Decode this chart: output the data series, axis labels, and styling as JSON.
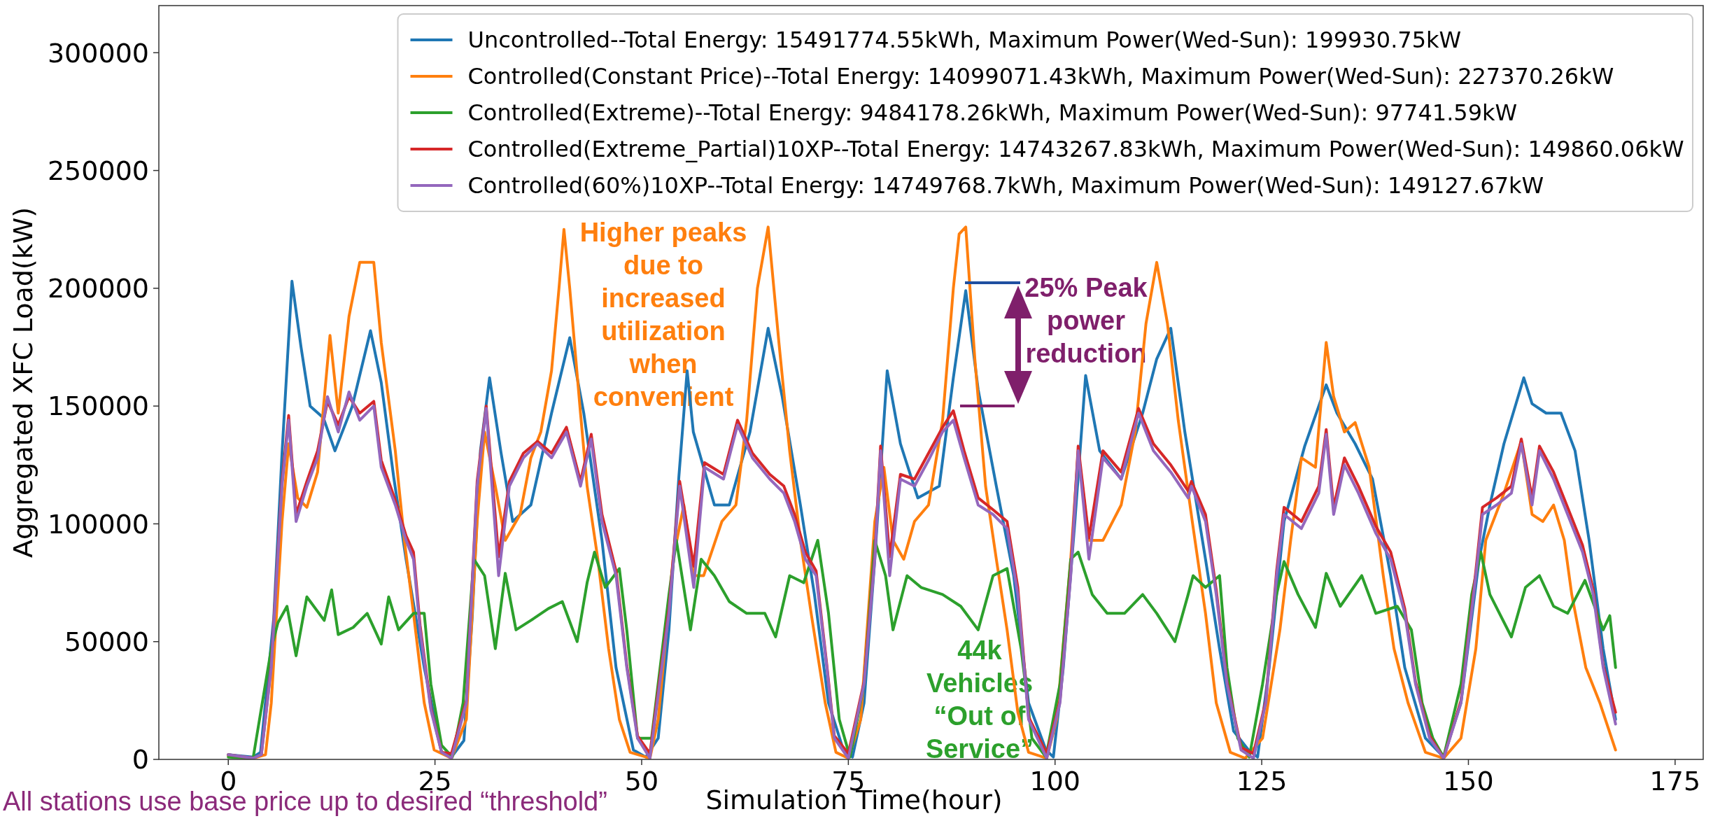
{
  "chart_data": {
    "type": "line",
    "xlabel": "Simulation Time(hour)",
    "ylabel": "Aggregated XFC Load(kW)",
    "xlim": [
      -8.4,
      178.4
    ],
    "ylim": [
      0,
      320000
    ],
    "xticks": [
      0,
      25,
      50,
      75,
      100,
      125,
      150,
      175
    ],
    "yticks": [
      0,
      50000,
      100000,
      150000,
      200000,
      250000,
      300000
    ],
    "grid": false,
    "legend": "top right",
    "line_style": "solid",
    "marker": "none",
    "annotations": [
      "Higher peaks due to increased utilization when convenient",
      "25% Peak power reduction",
      "44k Vehicles “Out of Service”",
      "All stations use base price up to desired “threshold”"
    ],
    "series": [
      {
        "name": "Uncontrolled--Total Energy: 15491774.55kWh, Maximum Power(Wed-Sun): 199930.75kW",
        "color": "#1f77b4",
        "x": [
          0,
          3,
          3.9,
          5.5,
          6.5,
          7.7,
          8.8,
          9.9,
          11.5,
          12.9,
          15,
          17.2,
          18.5,
          20,
          21.5,
          23.7,
          25.8,
          27,
          28.5,
          29.5,
          30.5,
          31.6,
          33,
          34.4,
          36.6,
          39.1,
          41.3,
          43,
          45.2,
          46.9,
          49,
          50.5,
          52,
          53.3,
          54.5,
          55.5,
          56.25,
          58.8,
          60.6,
          63.1,
          65.3,
          67,
          69.2,
          70.9,
          72.6,
          74.4,
          75.5,
          76.9,
          78.2,
          79.7,
          81.3,
          83.4,
          86,
          87.7,
          89.2,
          90.7,
          92.9,
          95,
          96.8,
          98.9,
          99.8,
          101,
          102.4,
          103.7,
          105.4,
          108,
          110.6,
          112.3,
          114,
          115.7,
          118.2,
          119.9,
          121.6,
          123.4,
          124.5,
          125.9,
          127.7,
          130.2,
          132.8,
          134.1,
          136.3,
          138.4,
          140.6,
          142.3,
          144.8,
          147,
          149.1,
          151.3,
          152.6,
          154.3,
          156.7,
          157.7,
          159.4,
          161.2,
          162.9,
          164.6,
          166.3,
          167.8
        ],
        "values": [
          2000,
          1000,
          3000,
          60000,
          130000,
          203000,
          175000,
          150000,
          145000,
          131000,
          150000,
          182000,
          160000,
          120000,
          85000,
          39000,
          3000,
          1000,
          8000,
          60000,
          131000,
          162000,
          130000,
          101000,
          108000,
          147000,
          179000,
          147000,
          93000,
          39000,
          4000,
          1000,
          9000,
          55000,
          120000,
          165000,
          139000,
          108000,
          108000,
          139000,
          183000,
          154000,
          108000,
          70000,
          24000,
          4000,
          1000,
          24000,
          85000,
          165000,
          134000,
          111000,
          116000,
          162000,
          199000,
          157000,
          116000,
          78000,
          24000,
          4000,
          1000,
          39000,
          101000,
          163000,
          131000,
          119000,
          147000,
          170000,
          183000,
          139000,
          85000,
          47000,
          12000,
          4000,
          1000,
          39000,
          101000,
          133000,
          159000,
          147000,
          134000,
          119000,
          78000,
          39000,
          9000,
          1000,
          24000,
          85000,
          108000,
          134000,
          162000,
          151000,
          147000,
          147000,
          131000,
          93000,
          47000,
          17000
        ]
      },
      {
        "name": "Controlled(Constant Price)--Total Energy: 14099071.43kWh, Maximum Power(Wed-Sun): 227370.26kW",
        "color": "#ff7f0e",
        "x": [
          0,
          3,
          4.5,
          5.2,
          6.5,
          7.3,
          8.4,
          9.5,
          10.8,
          12.3,
          13.3,
          14.6,
          15.9,
          17.6,
          18.5,
          20.2,
          21.3,
          22.4,
          23.7,
          24.9,
          27,
          28.8,
          30.1,
          31,
          32.3,
          33.5,
          35.3,
          36.6,
          37.8,
          39.1,
          40,
          40.6,
          41.3,
          42.6,
          43.4,
          44.7,
          46,
          47.3,
          48.6,
          51,
          52,
          53.8,
          55.1,
          56.3,
          57.5,
          59.7,
          61.4,
          62.7,
          64,
          65.3,
          66.6,
          67.9,
          69.2,
          70.5,
          72.2,
          73.5,
          75,
          76.5,
          78.2,
          79.3,
          80.4,
          81.7,
          83,
          84.7,
          86.4,
          87.7,
          88.4,
          89.2,
          90.3,
          91.6,
          92.9,
          94.2,
          95.5,
          96.8,
          99,
          100.2,
          101.9,
          102.8,
          104.1,
          105.8,
          108,
          109.7,
          111,
          112.3,
          113.6,
          114.9,
          116.6,
          118.2,
          119.5,
          121.2,
          123,
          125.1,
          127.2,
          128.5,
          129.8,
          131.5,
          132.8,
          133.7,
          135,
          136.3,
          138,
          139.7,
          141,
          142.7,
          144.8,
          147,
          149.1,
          150.9,
          152.1,
          154.3,
          156.4,
          157.7,
          159,
          160.3,
          161.6,
          162.5,
          164.2,
          165.9,
          167.8
        ],
        "values": [
          1500,
          500,
          2000,
          24000,
          101000,
          134000,
          111000,
          107000,
          122000,
          180000,
          147000,
          188000,
          211000,
          211000,
          177000,
          131000,
          93000,
          62000,
          24000,
          4000,
          500,
          17000,
          101000,
          139000,
          116000,
          93000,
          104000,
          128000,
          139000,
          165000,
          200000,
          225000,
          200000,
          147000,
          116000,
          85000,
          47000,
          17000,
          3000,
          500,
          17000,
          85000,
          108000,
          78000,
          78000,
          101000,
          108000,
          144000,
          200000,
          226000,
          177000,
          131000,
          93000,
          62000,
          24000,
          3000,
          500,
          17000,
          101000,
          124000,
          93000,
          85000,
          101000,
          108000,
          144000,
          200000,
          223000,
          226000,
          170000,
          116000,
          85000,
          55000,
          20000,
          3000,
          500,
          17000,
          85000,
          131000,
          93000,
          93000,
          108000,
          139000,
          185000,
          211000,
          185000,
          144000,
          101000,
          62000,
          24000,
          3000,
          500,
          9000,
          55000,
          93000,
          128000,
          124000,
          177000,
          154000,
          139000,
          143000,
          124000,
          78000,
          47000,
          24000,
          3000,
          500,
          9000,
          47000,
          93000,
          113000,
          135000,
          104000,
          101000,
          108000,
          93000,
          70000,
          39000,
          24000,
          4000
        ]
      },
      {
        "name": "Controlled(Extreme)--Total Energy: 9484178.26kWh, Maximum Power(Wed-Sun): 97741.59kW",
        "color": "#2ca02c",
        "x": [
          0,
          3,
          3.4,
          5.2,
          6,
          7.1,
          8.2,
          9.5,
          11.6,
          12.5,
          13.3,
          15.1,
          16.8,
          18.5,
          19.4,
          20.6,
          22.4,
          23.7,
          24.5,
          25.8,
          27.1,
          28.4,
          29.7,
          31,
          32.3,
          33.5,
          34.8,
          36.6,
          38.7,
          40.4,
          42.2,
          43.4,
          44.3,
          45.6,
          47.3,
          48.2,
          49.5,
          51.2,
          53.3,
          54.2,
          55.9,
          57.2,
          58.8,
          60.6,
          62.7,
          64.9,
          66.2,
          67.9,
          69.6,
          71.3,
          72.6,
          73.9,
          75.2,
          76.9,
          78.2,
          79.5,
          80.4,
          82.1,
          83.8,
          86.4,
          88.6,
          90.7,
          92.5,
          94.2,
          95.9,
          97.2,
          98.9,
          100.6,
          101.9,
          102.8,
          104.5,
          106.3,
          108.4,
          110.6,
          112.3,
          114.5,
          116.1,
          116.7,
          118.2,
          119.9,
          120.8,
          122.1,
          123.5,
          125.1,
          126.8,
          127.7,
          129.4,
          131.5,
          132.8,
          134.5,
          137.1,
          138.8,
          141.4,
          143.1,
          144.4,
          145.7,
          147,
          149.1,
          150.4,
          151.5,
          152.6,
          155.2,
          156.9,
          158.6,
          160.3,
          162,
          164.1,
          166.3,
          167.1,
          167.8
        ],
        "values": [
          1000,
          500,
          9000,
          47000,
          58000,
          65000,
          44000,
          69000,
          59000,
          72000,
          53000,
          56000,
          62000,
          49000,
          69000,
          55000,
          62000,
          62000,
          32000,
          6000,
          1000,
          24000,
          85000,
          78000,
          47000,
          79000,
          55000,
          59000,
          64000,
          67000,
          50000,
          75000,
          88000,
          73000,
          81000,
          55000,
          9000,
          9000,
          70000,
          93000,
          55000,
          85000,
          78000,
          67000,
          62000,
          62000,
          52000,
          78000,
          75000,
          93000,
          62000,
          17000,
          1000,
          32000,
          93000,
          78000,
          55000,
          78000,
          73000,
          70000,
          65000,
          55000,
          78000,
          81000,
          47000,
          9000,
          1000,
          32000,
          85000,
          88000,
          70000,
          62000,
          62000,
          70000,
          62000,
          50000,
          70000,
          78000,
          73000,
          78000,
          39000,
          9000,
          1000,
          32000,
          70000,
          84000,
          70000,
          56000,
          79000,
          65000,
          78000,
          62000,
          65000,
          55000,
          24000,
          9000,
          1000,
          32000,
          70000,
          88000,
          70000,
          52000,
          73000,
          78000,
          65000,
          62000,
          76000,
          55000,
          61000,
          39000
        ]
      },
      {
        "name": "Controlled(Extreme_Partial)10XP--Total Energy: 14743267.83kWh, Maximum Power(Wed-Sun): 149860.06kW",
        "color": "#d62728",
        "x": [
          0,
          3,
          4,
          5.2,
          6.5,
          7.3,
          8.2,
          9.5,
          10.8,
          12,
          13.3,
          14.6,
          15.9,
          17.6,
          18.5,
          20.2,
          21.5,
          22.4,
          23.2,
          24.5,
          25.8,
          27,
          28.8,
          30.1,
          31.2,
          32.7,
          34,
          35.7,
          37.4,
          39.1,
          40.9,
          42.6,
          43.9,
          45.2,
          46.9,
          48.2,
          49.5,
          51,
          53.3,
          54.6,
          56.3,
          57.6,
          59.9,
          61.6,
          63.4,
          65.5,
          67.2,
          68.5,
          69.8,
          71.1,
          72.4,
          73.3,
          75,
          76.9,
          78.2,
          78.9,
          80,
          81.3,
          83,
          84.7,
          86.4,
          87.7,
          89,
          90.7,
          92.5,
          94.2,
          95.5,
          96.8,
          99,
          100.6,
          101.9,
          102.8,
          104.1,
          105.8,
          108,
          110.1,
          111.9,
          114,
          116.1,
          116.5,
          118.2,
          119.5,
          120.8,
          122.5,
          124,
          125.5,
          126.8,
          127.7,
          129.8,
          131.9,
          132.8,
          133.7,
          135,
          136.7,
          138.8,
          140.6,
          142.3,
          143.6,
          145.3,
          147,
          149.1,
          150.9,
          151.7,
          153.4,
          155.2,
          156.4,
          157.7,
          158.6,
          160.3,
          162,
          163.8,
          165.1,
          166.3,
          167.8
        ],
        "values": [
          2000,
          500,
          2000,
          40000,
          118000,
          146000,
          104000,
          118000,
          131000,
          152000,
          142000,
          154000,
          147000,
          152000,
          127000,
          110000,
          95000,
          88000,
          57000,
          22000,
          3000,
          2500,
          25000,
          118000,
          150000,
          86000,
          118000,
          130000,
          135000,
          130000,
          141000,
          118000,
          138000,
          104000,
          80000,
          40000,
          10000,
          2500,
          64000,
          118000,
          82000,
          126000,
          121000,
          144000,
          130000,
          121000,
          116000,
          104000,
          88000,
          80000,
          40000,
          10000,
          2500,
          33000,
          87000,
          133000,
          86000,
          121000,
          119000,
          130000,
          141000,
          148000,
          131000,
          111000,
          106000,
          101000,
          73000,
          18000,
          2500,
          25000,
          80000,
          133000,
          94000,
          131000,
          122000,
          149000,
          134000,
          125000,
          114000,
          118000,
          104000,
          72000,
          33000,
          5000,
          2500,
          25000,
          80000,
          107000,
          101000,
          116000,
          140000,
          107000,
          128000,
          116000,
          99000,
          88000,
          64000,
          33000,
          10000,
          500,
          25000,
          80000,
          107000,
          111000,
          116000,
          136000,
          111000,
          133000,
          122000,
          107000,
          91000,
          72000,
          40000,
          20000
        ]
      },
      {
        "name": "Controlled(60%)10XP--Total Energy: 14749768.7kWh, Maximum Power(Wed-Sun): 149127.67kW",
        "color": "#9467bd",
        "x": [
          0,
          3,
          4,
          5.2,
          6.5,
          7.3,
          8.2,
          9.5,
          10.8,
          12,
          13.3,
          14.6,
          15.9,
          17.6,
          18.5,
          20.2,
          21.5,
          22.4,
          23.2,
          24.5,
          25.8,
          27,
          28.8,
          30.1,
          31.2,
          32.7,
          34,
          35.7,
          37.4,
          39.1,
          40.9,
          42.6,
          43.9,
          45.2,
          46.9,
          48.2,
          49.5,
          51,
          53.3,
          54.6,
          56.3,
          57.6,
          59.9,
          61.6,
          63.4,
          65.5,
          67.2,
          68.5,
          69.8,
          71.1,
          72.4,
          73.3,
          75,
          76.9,
          78.2,
          78.9,
          80,
          81.3,
          83,
          84.7,
          86.4,
          87.7,
          89,
          90.7,
          92.5,
          94.2,
          95.5,
          96.8,
          99,
          100.6,
          101.9,
          102.8,
          104.1,
          105.8,
          108,
          110.1,
          111.9,
          114,
          116.1,
          116.5,
          118.2,
          119.5,
          120.8,
          122.5,
          124,
          125.5,
          126.8,
          127.7,
          129.8,
          131.9,
          132.8,
          133.7,
          135,
          136.7,
          138.8,
          140.6,
          142.3,
          143.6,
          145.3,
          147,
          149.1,
          150.9,
          151.7,
          153.4,
          155.2,
          156.4,
          157.7,
          158.6,
          160.3,
          162,
          163.8,
          165.1,
          166.3,
          167.8
        ],
        "values": [
          2000,
          500,
          2000,
          39000,
          116000,
          144000,
          101000,
          116000,
          128000,
          154000,
          139000,
          156000,
          144000,
          150000,
          124000,
          108000,
          93000,
          85000,
          55000,
          21000,
          3000,
          500,
          24000,
          116000,
          149000,
          78000,
          116000,
          128000,
          134000,
          128000,
          139000,
          116000,
          136000,
          101000,
          78000,
          39000,
          9000,
          500,
          62000,
          116000,
          73000,
          124000,
          119000,
          142000,
          128000,
          119000,
          113000,
          101000,
          85000,
          78000,
          39000,
          9000,
          500,
          32000,
          85000,
          131000,
          78000,
          119000,
          116000,
          127000,
          139000,
          144000,
          128000,
          108000,
          104000,
          98000,
          70000,
          17000,
          500,
          24000,
          78000,
          131000,
          85000,
          128000,
          119000,
          147000,
          131000,
          122000,
          111000,
          116000,
          101000,
          70000,
          32000,
          4000,
          500,
          24000,
          78000,
          104000,
          98000,
          113000,
          138000,
          104000,
          125000,
          113000,
          96000,
          85000,
          62000,
          32000,
          9000,
          500,
          24000,
          78000,
          104000,
          108000,
          113000,
          134000,
          108000,
          131000,
          119000,
          104000,
          88000,
          70000,
          39000,
          15000
        ]
      }
    ]
  }
}
